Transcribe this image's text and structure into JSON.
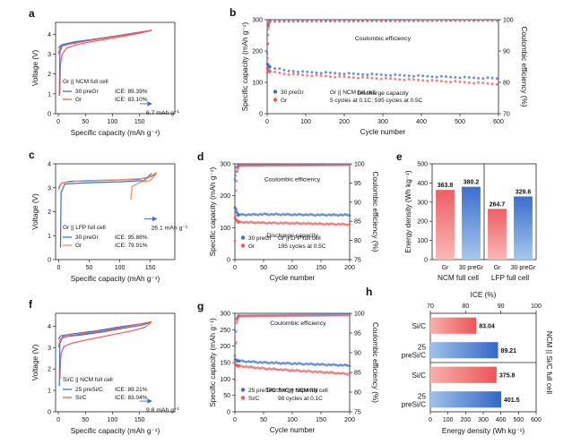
{
  "colors": {
    "blue": "#3d6fcb",
    "red": "#ec5a5e",
    "orange": "#ef8a5b",
    "cyan": "#6fc3e3"
  },
  "panel_labels": [
    "a",
    "b",
    "c",
    "d",
    "e",
    "f",
    "g",
    "h"
  ],
  "chart_data": [
    {
      "panel": "a",
      "type": "line",
      "xlabel": "Specific capacity (mAh g⁻¹)",
      "ylabel": "Voltage (V)",
      "xlim": [
        -5,
        215
      ],
      "ylim": [
        0,
        4.6
      ],
      "xticks": [
        0,
        50,
        100,
        150
      ],
      "yticks": [
        0,
        1,
        2,
        3,
        4
      ],
      "legend_title": "Gr || NCM full cell",
      "annotation": "6.7 mAh g⁻¹",
      "series": [
        {
          "name": "30 preGr",
          "ice": "ICE: 89.39%",
          "color": "#3d6fcb",
          "charge": [
            [
              0,
              3.3
            ],
            [
              5,
              3.45
            ],
            [
              20,
              3.55
            ],
            [
              50,
              3.68
            ],
            [
              90,
              3.85
            ],
            [
              130,
              4.02
            ],
            [
              160,
              4.15
            ],
            [
              172,
              4.2
            ]
          ],
          "discharge": [
            [
              172,
              4.2
            ],
            [
              150,
              4.1
            ],
            [
              110,
              3.92
            ],
            [
              70,
              3.76
            ],
            [
              30,
              3.62
            ],
            [
              8,
              3.48
            ],
            [
              3,
              3.1
            ],
            [
              2,
              0.9
            ]
          ]
        },
        {
          "name": "Gr",
          "ice": "ICE: 83.10%",
          "color": "#ec5a5e",
          "charge": [
            [
              0,
              3.0
            ],
            [
              4,
              3.38
            ],
            [
              20,
              3.5
            ],
            [
              60,
              3.7
            ],
            [
              100,
              3.88
            ],
            [
              140,
              4.05
            ],
            [
              172,
              4.2
            ]
          ],
          "discharge": [
            [
              172,
              4.2
            ],
            [
              150,
              4.05
            ],
            [
              120,
              3.9
            ],
            [
              90,
              3.76
            ],
            [
              60,
              3.62
            ],
            [
              35,
              3.48
            ],
            [
              15,
              3.3
            ],
            [
              7,
              3.0
            ],
            [
              4,
              2.5
            ],
            [
              3,
              1.0
            ]
          ]
        }
      ]
    },
    {
      "panel": "b",
      "type": "scatter",
      "xlabel": "Cycle number",
      "ylabel": "Specific capacity (mAh g⁻¹)",
      "y2label": "Coulombic efficiency (%)",
      "xlim": [
        0,
        600
      ],
      "ylim": [
        0,
        300
      ],
      "y2lim": [
        70,
        100
      ],
      "xticks": [
        0,
        100,
        200,
        300,
        400,
        500,
        600
      ],
      "yticks": [
        0,
        100,
        200,
        300
      ],
      "y2ticks": [
        70,
        80,
        90,
        100
      ],
      "legend_title": "Gr || NCM full cell",
      "legend_note": "5 cycles at 0.1C; 595 cycles at 0.5C",
      "annotations": [
        "Coulombic efficiency",
        "Discharge capacity"
      ],
      "series": [
        {
          "name": "30 preGr",
          "color": "#3d6fcb",
          "capacity": [
            [
              0,
              160
            ],
            [
              5,
              150
            ],
            [
              50,
              137
            ],
            [
              100,
              133
            ],
            [
              200,
              128
            ],
            [
              300,
              124
            ],
            [
              400,
              120
            ],
            [
              500,
              116
            ],
            [
              600,
              112
            ]
          ],
          "ce": [
            [
              0,
              89.4
            ],
            [
              3,
              98
            ],
            [
              6,
              99.5
            ],
            [
              600,
              99.8
            ]
          ]
        },
        {
          "name": "Gr",
          "color": "#ec5a5e",
          "capacity": [
            [
              0,
              145
            ],
            [
              5,
              135
            ],
            [
              50,
              127
            ],
            [
              100,
              123
            ],
            [
              200,
              117
            ],
            [
              300,
              112
            ],
            [
              400,
              107
            ],
            [
              500,
              101
            ],
            [
              600,
              95
            ]
          ],
          "ce": [
            [
              0,
              83.1
            ],
            [
              3,
              97
            ],
            [
              6,
              99.4
            ],
            [
              600,
              99.7
            ]
          ]
        }
      ]
    },
    {
      "panel": "c",
      "type": "line",
      "xlabel": "Specific capacity (mAh g⁻¹)",
      "ylabel": "Voltage (V)",
      "xlim": [
        -5,
        190
      ],
      "ylim": [
        0,
        4.0
      ],
      "xticks": [
        0,
        50,
        100,
        150
      ],
      "yticks": [
        0,
        1,
        2,
        3,
        4
      ],
      "legend_title": "Gr || LFP full cell",
      "annotation": "26.1 mAh g⁻¹",
      "series": [
        {
          "name": "30 preGr",
          "ice": "ICE: 95.88%",
          "color": "#3d6fcb",
          "charge": [
            [
              0,
              3.0
            ],
            [
              5,
              3.2
            ],
            [
              20,
              3.27
            ],
            [
              80,
              3.31
            ],
            [
              130,
              3.35
            ],
            [
              150,
              3.45
            ],
            [
              160,
              3.6
            ]
          ],
          "discharge": [
            [
              152,
              3.6
            ],
            [
              140,
              3.3
            ],
            [
              100,
              3.25
            ],
            [
              40,
              3.2
            ],
            [
              10,
              3.15
            ],
            [
              4,
              2.8
            ],
            [
              3,
              0.5
            ]
          ]
        },
        {
          "name": "Gr",
          "ice": "ICE: 79.91%",
          "color": "#ef8a5b",
          "charge": [
            [
              0,
              2.9
            ],
            [
              5,
              3.2
            ],
            [
              40,
              3.3
            ],
            [
              100,
              3.33
            ],
            [
              145,
              3.4
            ],
            [
              155,
              3.55
            ],
            [
              160,
              3.65
            ]
          ],
          "discharge": [
            [
              160,
              3.6
            ],
            [
              150,
              3.3
            ],
            [
              135,
              3.25
            ],
            [
              120,
              3.05
            ],
            [
              118,
              2.5
            ]
          ]
        }
      ]
    },
    {
      "panel": "d",
      "type": "scatter",
      "xlabel": "Cycle number",
      "ylabel": "Specific capacity (mAh g⁻¹)",
      "y2label": "Coulombic efficiency (%)",
      "xlim": [
        0,
        200
      ],
      "ylim": [
        0,
        300
      ],
      "y2lim": [
        75,
        100
      ],
      "xticks": [
        0,
        50,
        100,
        150,
        200
      ],
      "yticks": [
        0,
        100,
        200,
        300
      ],
      "y2ticks": [
        75,
        80,
        85,
        90,
        95,
        100
      ],
      "legend_title": "Gr || LFP full cell",
      "legend_note": "195 cycles at 0.5C",
      "annotations": [
        "Coulombic efficiency",
        "Discharge capacity"
      ],
      "series": [
        {
          "name": "30 preGr",
          "color": "#3d6fcb",
          "capacity": [
            [
              0,
              165
            ],
            [
              5,
              140
            ],
            [
              50,
              142
            ],
            [
              100,
              141
            ],
            [
              150,
              140
            ],
            [
              200,
              140
            ]
          ],
          "ce": [
            [
              0,
              95.9
            ],
            [
              3,
              99
            ],
            [
              6,
              99.6
            ],
            [
              200,
              99.8
            ]
          ]
        },
        {
          "name": "Gr",
          "color": "#ec5a5e",
          "capacity": [
            [
              0,
              130
            ],
            [
              5,
              118
            ],
            [
              50,
              115
            ],
            [
              100,
              114
            ],
            [
              150,
              112
            ],
            [
              200,
              110
            ]
          ],
          "ce": [
            [
              0,
              79.9
            ],
            [
              2,
              93
            ],
            [
              4,
              98
            ],
            [
              7,
              99.5
            ],
            [
              200,
              99.7
            ]
          ]
        }
      ]
    },
    {
      "panel": "e",
      "type": "bar",
      "ylabel": "Energy density (Wh kg⁻¹)",
      "ylim": [
        0,
        500
      ],
      "yticks": [
        0,
        100,
        200,
        300,
        400,
        500
      ],
      "categories": [
        "Gr",
        "30 preGr",
        "Gr",
        "30 preGr"
      ],
      "values": [
        363.8,
        380.2,
        264.7,
        329.6
      ],
      "value_labels": [
        "363.8",
        "380.2",
        "264.7",
        "329.6"
      ],
      "groups": [
        "NCM full cell",
        "LFP full cell"
      ],
      "bar_colors": [
        "#ec5a5e",
        "#3d6fcb",
        "#ec5a5e",
        "#3d6fcb"
      ]
    },
    {
      "panel": "f",
      "type": "line",
      "xlabel": "Specific capacity (mAh g⁻¹)",
      "ylabel": "Voltage (V)",
      "xlim": [
        -5,
        215
      ],
      "ylim": [
        0,
        4.6
      ],
      "xticks": [
        0,
        50,
        100,
        150
      ],
      "yticks": [
        0,
        1,
        2,
        3,
        4
      ],
      "legend_title": "Si/C || NCM full cell",
      "annotation": "9.8 mAh g⁻¹",
      "series": [
        {
          "name": "25 preSi/C",
          "ice": "ICE: 89.21%",
          "color": "#3d6fcb",
          "charge": [
            [
              0,
              3.4
            ],
            [
              5,
              3.55
            ],
            [
              30,
              3.65
            ],
            [
              70,
              3.78
            ],
            [
              110,
              3.95
            ],
            [
              150,
              4.1
            ],
            [
              172,
              4.2
            ]
          ],
          "discharge": [
            [
              172,
              4.2
            ],
            [
              155,
              4.05
            ],
            [
              120,
              3.9
            ],
            [
              80,
              3.72
            ],
            [
              40,
              3.58
            ],
            [
              8,
              3.5
            ],
            [
              3,
              3.2
            ],
            [
              2,
              1.2
            ]
          ]
        },
        {
          "name": "Si/C",
          "ice": "ICE: 83.04%",
          "color": "#ec5a5e",
          "charge": [
            [
              0,
              3.0
            ],
            [
              4,
              3.4
            ],
            [
              20,
              3.55
            ],
            [
              60,
              3.7
            ],
            [
              100,
              3.86
            ],
            [
              140,
              4.05
            ],
            [
              172,
              4.2
            ]
          ],
          "discharge": [
            [
              172,
              4.2
            ],
            [
              160,
              3.95
            ],
            [
              140,
              3.8
            ],
            [
              110,
              3.65
            ],
            [
              80,
              3.5
            ],
            [
              50,
              3.35
            ],
            [
              25,
              3.2
            ],
            [
              10,
              3.05
            ],
            [
              5,
              2.7
            ],
            [
              3,
              1.5
            ]
          ]
        }
      ]
    },
    {
      "panel": "g",
      "type": "scatter",
      "xlabel": "Cycle number",
      "ylabel": "Specific capacity (mAh g⁻¹)",
      "y2label": "Coulombic efficiency (%)",
      "xlim": [
        0,
        200
      ],
      "ylim": [
        0,
        300
      ],
      "y2lim": [
        75,
        100
      ],
      "xticks": [
        0,
        50,
        100,
        150,
        200
      ],
      "yticks": [
        0,
        50,
        100,
        150,
        200,
        250,
        300
      ],
      "y2ticks": [
        75,
        80,
        85,
        90,
        95,
        100
      ],
      "legend_title": "Si/C || NCM full cell",
      "legend_note": "98 cycles at 0.1C",
      "annotations": [
        "Coulombic efficiency",
        "Discharge capacity"
      ],
      "series": [
        {
          "name": "25 preSi/C",
          "color": "#3d6fcb",
          "capacity": [
            [
              0,
              160
            ],
            [
              4,
              155
            ],
            [
              50,
              150
            ],
            [
              100,
              147
            ],
            [
              150,
              144
            ],
            [
              200,
              141
            ]
          ],
          "ce": [
            [
              0,
              89.2
            ],
            [
              3,
              98.5
            ],
            [
              6,
              99.4
            ],
            [
              200,
              99.7
            ]
          ]
        },
        {
          "name": "Si/C",
          "color": "#ec5a5e",
          "capacity": [
            [
              0,
              145
            ],
            [
              4,
              140
            ],
            [
              50,
              132
            ],
            [
              100,
              126
            ],
            [
              150,
              121
            ],
            [
              200,
              115
            ]
          ],
          "ce": [
            [
              0,
              83.0
            ],
            [
              3,
              97.5
            ],
            [
              6,
              99.2
            ],
            [
              200,
              99.5
            ]
          ]
        }
      ]
    },
    {
      "panel": "h",
      "type": "bar",
      "orientation": "horizontal",
      "xlabel": "Energy density (Wh kg⁻¹)",
      "x2label": "ICE (%)",
      "xlim": [
        0,
        600
      ],
      "xticks": [
        0,
        100,
        200,
        300,
        400,
        500,
        600
      ],
      "x2lim": [
        70,
        100
      ],
      "x2ticks": [
        70,
        80,
        90,
        100
      ],
      "side_label": "NCM || Si/C full cell",
      "categories": [
        "Si/C",
        "25 preSi/C",
        "Si/C",
        "25 preSi/C"
      ],
      "ice_values": [
        83.04,
        89.21
      ],
      "energy_values": [
        375.8,
        401.5
      ],
      "value_labels": [
        "83.04",
        "89.21",
        "375.8",
        "401.5"
      ]
    }
  ]
}
